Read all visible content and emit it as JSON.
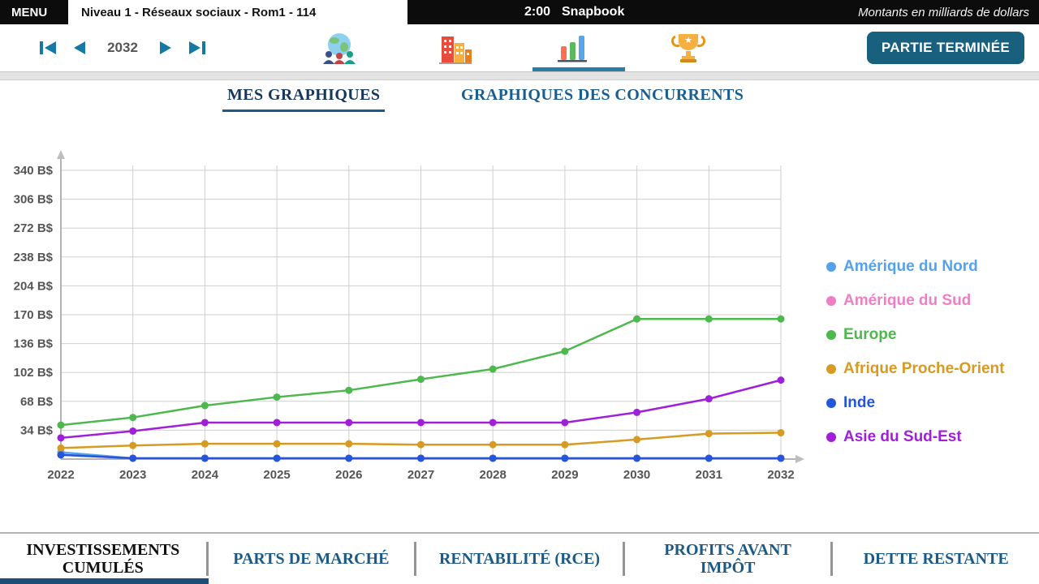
{
  "topbar": {
    "menu": "MENU",
    "level_title": "Niveau 1 - Réseaux sociaux - Rom1 - 114",
    "timer": "2:00",
    "brand": "Snapbook",
    "units_note": "Montants en milliards de dollars"
  },
  "toolbar": {
    "year": "2032",
    "finish_button": "PARTIE TERMINÉE"
  },
  "tabs": {
    "my_graphs": "MES GRAPHIQUES",
    "competitors": "GRAPHIQUES DES CONCURRENTS"
  },
  "bottom_tabs": [
    {
      "label": "INVESTISSEMENTS CUMULÉS",
      "active": true
    },
    {
      "label": "PARTS DE MARCHÉ",
      "active": false
    },
    {
      "label": "RENTABILITÉ (RCE)",
      "active": false
    },
    {
      "label": "PROFITS AVANT IMPÔT",
      "active": false
    },
    {
      "label": "DETTE RESTANTE",
      "active": false
    }
  ],
  "chart_data": {
    "type": "line",
    "title": "Investissements cumulés (milliards de dollars)",
    "x": [
      2022,
      2023,
      2024,
      2025,
      2026,
      2027,
      2028,
      2029,
      2030,
      2031,
      2032
    ],
    "unit": "B$",
    "ylim": [
      0,
      340
    ],
    "ytick_step": 34,
    "grid": true,
    "legend_position": "right",
    "series": [
      {
        "name": "Amérique du Nord",
        "color": "#55a2ea",
        "values": [
          8,
          1,
          1,
          1,
          1,
          1,
          1,
          1,
          1,
          1,
          1
        ]
      },
      {
        "name": "Amérique du Sud",
        "color": "#ee7fc4",
        "values": [
          5,
          1,
          1,
          1,
          1,
          1,
          1,
          1,
          1,
          1,
          1
        ]
      },
      {
        "name": "Europe",
        "color": "#4db84d",
        "values": [
          40,
          49,
          63,
          73,
          81,
          94,
          106,
          127,
          165,
          165,
          165
        ]
      },
      {
        "name": "Afrique Proche-Orient",
        "color": "#d79a22",
        "values": [
          13,
          16,
          18,
          18,
          18,
          17,
          17,
          17,
          23,
          30,
          31
        ]
      },
      {
        "name": "Inde",
        "color": "#2356d8",
        "values": [
          5,
          1,
          1,
          1,
          1,
          1,
          1,
          1,
          1,
          1,
          1
        ]
      },
      {
        "name": "Asie du Sud-Est",
        "color": "#a01fd8",
        "values": [
          25,
          33,
          43,
          43,
          43,
          43,
          43,
          43,
          55,
          71,
          93
        ]
      }
    ]
  }
}
